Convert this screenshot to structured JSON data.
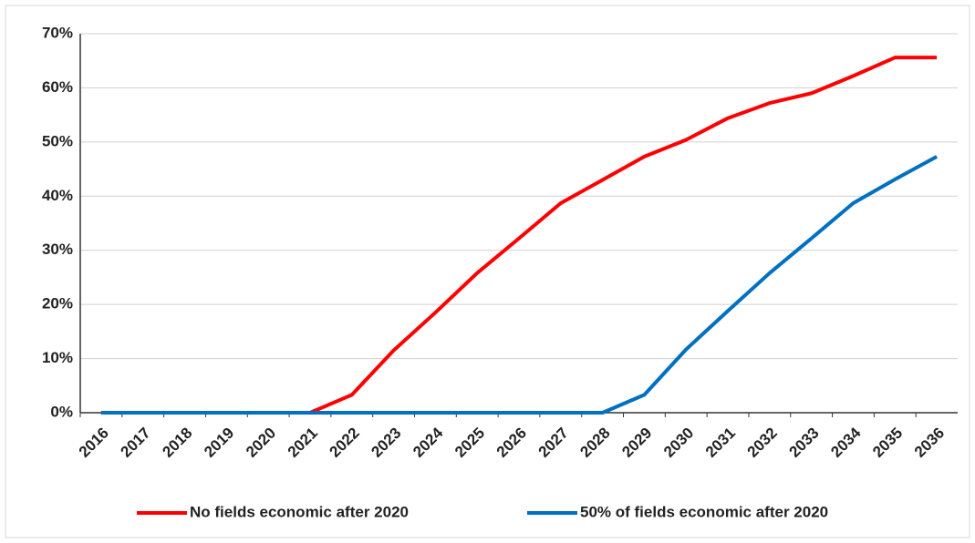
{
  "chart_data": {
    "type": "line",
    "categories": [
      "2016",
      "2017",
      "2018",
      "2019",
      "2020",
      "2021",
      "2022",
      "2023",
      "2024",
      "2025",
      "2026",
      "2027",
      "2028",
      "2029",
      "2030",
      "2031",
      "2032",
      "2033",
      "2034",
      "2035",
      "2036"
    ],
    "series": [
      {
        "name": "No fields economic after 2020",
        "color": "#ff0000",
        "values": [
          0,
          0,
          0,
          0,
          0,
          0,
          3.3,
          11.5,
          18.5,
          25.8,
          32.2,
          38.7,
          43,
          47.3,
          50.4,
          54.4,
          57.2,
          59,
          62.2,
          65.6,
          65.6
        ]
      },
      {
        "name": "50% of fields economic after 2020",
        "color": "#0070c0",
        "values": [
          0,
          0,
          0,
          0,
          0,
          0,
          0,
          0,
          0,
          0,
          0,
          0,
          0,
          3.3,
          11.7,
          18.8,
          25.8,
          32.2,
          38.7,
          43.1,
          47.3
        ]
      }
    ],
    "ylim": [
      0,
      70
    ],
    "yticks": [
      {
        "value": 0,
        "label": "0%"
      },
      {
        "value": 10,
        "label": "10%"
      },
      {
        "value": 20,
        "label": "20%"
      },
      {
        "value": 30,
        "label": "30%"
      },
      {
        "value": 40,
        "label": "40%"
      },
      {
        "value": 50,
        "label": "50%"
      },
      {
        "value": 60,
        "label": "60%"
      },
      {
        "value": 70,
        "label": "70%"
      }
    ],
    "grid": true,
    "legend": "bottom"
  }
}
